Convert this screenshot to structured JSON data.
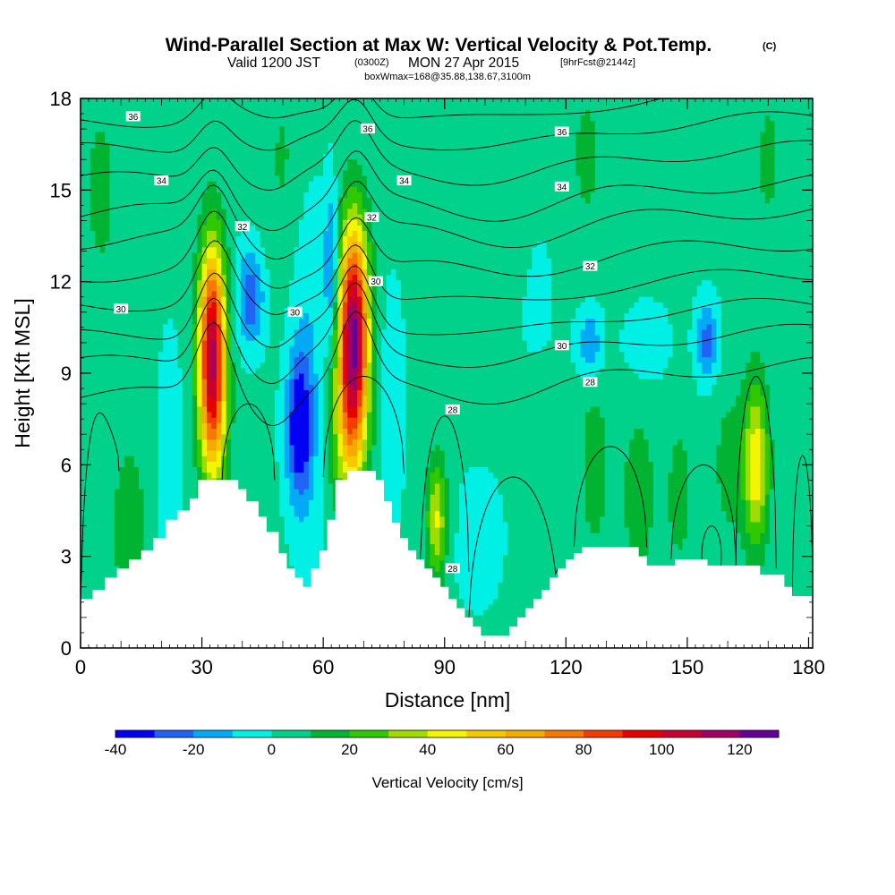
{
  "title": {
    "main": "Wind-Parallel Section at Max W: Vertical Velocity & Pot.Temp.",
    "copyright": "(C)",
    "valid_prefix": "Valid 1200 JST",
    "valid_z": "(0300Z)",
    "valid_date": "MON 27 Apr 2015",
    "forecast": "[9hrFcst@2144z]",
    "box": "boxWmax=168@35.88,138.67,3100m"
  },
  "chart_data": {
    "type": "heatmap",
    "xlabel": "Distance [nm]",
    "ylabel": "Height [Kft MSL]",
    "xlim": [
      0,
      181
    ],
    "ylim": [
      0,
      18
    ],
    "x_ticks": [
      0,
      30,
      60,
      90,
      120,
      150,
      180
    ],
    "y_ticks": [
      0,
      3,
      6,
      9,
      12,
      15,
      18
    ],
    "colorbar": {
      "title": "Vertical Velocity [cm/s]",
      "min": -40,
      "max": 130,
      "step": 10,
      "labels": [
        -40,
        -20,
        0,
        20,
        40,
        60,
        80,
        100,
        120
      ],
      "colors": [
        "#0000f5",
        "#1f64f5",
        "#00aaf5",
        "#00f0e6",
        "#00d28c",
        "#00b432",
        "#32c800",
        "#a0dc00",
        "#f5f500",
        "#f5c800",
        "#f5aa00",
        "#f57800",
        "#f53c00",
        "#e60000",
        "#c80032",
        "#a00064",
        "#640096"
      ]
    },
    "terrain": [
      [
        0,
        1.6
      ],
      [
        3,
        1.9
      ],
      [
        6,
        2.3
      ],
      [
        9,
        2.6
      ],
      [
        12,
        2.9
      ],
      [
        15,
        3.2
      ],
      [
        18,
        3.6
      ],
      [
        21,
        4.2
      ],
      [
        24,
        4.5
      ],
      [
        27,
        4.9
      ],
      [
        29,
        5.5
      ],
      [
        37,
        5.5
      ],
      [
        39,
        5.2
      ],
      [
        41,
        4.8
      ],
      [
        44,
        4.3
      ],
      [
        46,
        3.8
      ],
      [
        49,
        3.1
      ],
      [
        51,
        2.6
      ],
      [
        53,
        2.3
      ],
      [
        55,
        2.0
      ],
      [
        57,
        2.6
      ],
      [
        59,
        3.2
      ],
      [
        61,
        4.2
      ],
      [
        63,
        5.5
      ],
      [
        66,
        5.8
      ],
      [
        71,
        5.8
      ],
      [
        73,
        5.5
      ],
      [
        75,
        4.8
      ],
      [
        77,
        4.1
      ],
      [
        79,
        3.6
      ],
      [
        81,
        3.2
      ],
      [
        83,
        2.9
      ],
      [
        85,
        2.6
      ],
      [
        87,
        2.3
      ],
      [
        89,
        2.0
      ],
      [
        91,
        1.6
      ],
      [
        93,
        1.3
      ],
      [
        95,
        1.0
      ],
      [
        97,
        0.7
      ],
      [
        99,
        0.4
      ],
      [
        104,
        0.4
      ],
      [
        106,
        0.7
      ],
      [
        108,
        1.0
      ],
      [
        110,
        1.3
      ],
      [
        112,
        1.6
      ],
      [
        114,
        1.9
      ],
      [
        116,
        2.3
      ],
      [
        118,
        2.6
      ],
      [
        120,
        2.9
      ],
      [
        122,
        3.1
      ],
      [
        124,
        3.3
      ],
      [
        136,
        3.3
      ],
      [
        138,
        3.0
      ],
      [
        140,
        2.7
      ],
      [
        142,
        2.7
      ],
      [
        145,
        2.7
      ],
      [
        147,
        2.9
      ],
      [
        153,
        2.9
      ],
      [
        155,
        2.7
      ],
      [
        166,
        2.7
      ],
      [
        168,
        2.4
      ],
      [
        172,
        2.4
      ],
      [
        174,
        2.0
      ],
      [
        176,
        1.7
      ],
      [
        181,
        1.7
      ]
    ],
    "updraft_cores": [
      {
        "x": 32.5,
        "y": 10.0,
        "peak": 100
      },
      {
        "x": 67.5,
        "y": 10.5,
        "peak": 110
      },
      {
        "x": 88,
        "y": 4.2,
        "peak": 40
      },
      {
        "x": 167,
        "y": 6.0,
        "peak": 45
      }
    ],
    "theta_contour_labels": [
      {
        "text": "36",
        "x": 13,
        "y": 17.4
      },
      {
        "text": "36",
        "x": 71,
        "y": 17.0
      },
      {
        "text": "36",
        "x": 119,
        "y": 16.9
      },
      {
        "text": "34",
        "x": 20,
        "y": 15.3
      },
      {
        "text": "34",
        "x": 80,
        "y": 15.3
      },
      {
        "text": "34",
        "x": 119,
        "y": 15.1
      },
      {
        "text": "32",
        "x": 40,
        "y": 13.8
      },
      {
        "text": "32",
        "x": 72,
        "y": 14.1
      },
      {
        "text": "32",
        "x": 126,
        "y": 12.5
      },
      {
        "text": "30",
        "x": 10,
        "y": 11.1
      },
      {
        "text": "30",
        "x": 53,
        "y": 11.0
      },
      {
        "text": "30",
        "x": 73,
        "y": 12.0
      },
      {
        "text": "30",
        "x": 119,
        "y": 9.9
      },
      {
        "text": "28",
        "x": 92,
        "y": 7.8
      },
      {
        "text": "28",
        "x": 126,
        "y": 8.7
      },
      {
        "text": "28",
        "x": 92,
        "y": 2.6
      }
    ]
  }
}
